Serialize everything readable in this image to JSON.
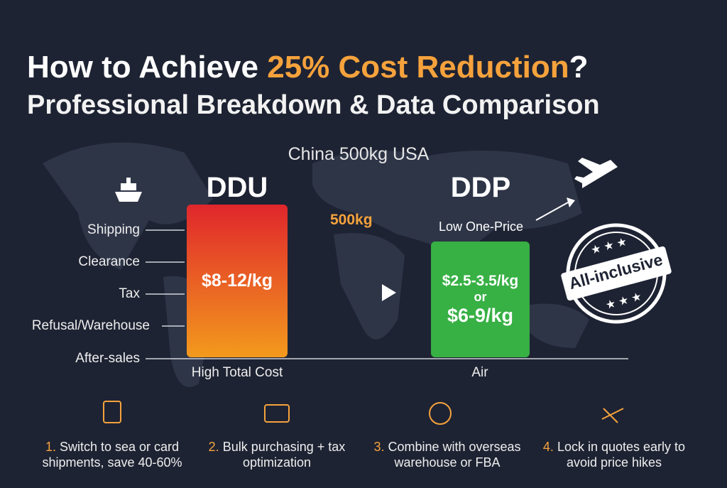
{
  "header": {
    "title_start": "How to Achieve ",
    "title_highlight": "25% Cost Reduction",
    "title_end": "?",
    "subtitle": "Professional Breakdown & Data Comparison"
  },
  "route": "China 500kg USA",
  "weight_tag": "500kg",
  "cost_items": [
    "Shipping",
    "Clearance",
    "Tax",
    "Refusal/Warehouse",
    "After-sales"
  ],
  "ddu": {
    "label": "DDU",
    "price": "$8-12/kg",
    "caption": "High Total Cost"
  },
  "ddp": {
    "label": "DDP",
    "note": "Low One-Price",
    "price_sea": "$2.5-3.5/kg",
    "or": "or",
    "price_air": "$6-9/kg",
    "caption": "Air"
  },
  "stamp": "All-inclusive",
  "tips": [
    {
      "number": "1.",
      "text": "Switch to sea or card shipments, save 40-60%"
    },
    {
      "number": "2.",
      "text": "Bulk purchasing + tax optimization"
    },
    {
      "number": "3.",
      "text": "Combine with overseas warehouse or FBA"
    },
    {
      "number": "4.",
      "text": "Lock in quotes early to avoid price hikes"
    }
  ]
}
